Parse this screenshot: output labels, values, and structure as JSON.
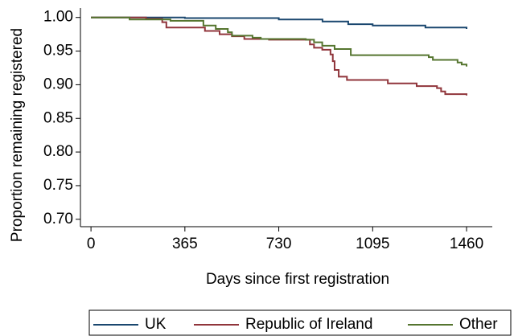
{
  "chart_data": {
    "type": "step",
    "y_label": "Proportion remaining registered",
    "x_label": "Days since first registration",
    "xlim": [
      -41,
      1560
    ],
    "ylim": [
      0.689,
      1.014
    ],
    "xticks": [
      0,
      365,
      730,
      1095,
      1460
    ],
    "yticks": [
      {
        "value": 0.7,
        "label": "0.70"
      },
      {
        "value": 0.75,
        "label": "0.75"
      },
      {
        "value": 0.8,
        "label": "0.80"
      },
      {
        "value": 0.85,
        "label": "0.85"
      },
      {
        "value": 0.9,
        "label": "0.90"
      },
      {
        "value": 0.95,
        "label": "0.95"
      },
      {
        "value": 1.0,
        "label": "1.00"
      }
    ],
    "series": [
      {
        "name": "UK",
        "color": "#1a476f",
        "x": [
          0,
          365,
          730,
          900,
          1000,
          1095,
          1300,
          1460
        ],
        "values": [
          1.0,
          0.999,
          0.997,
          0.994,
          0.99,
          0.988,
          0.985,
          0.983
        ]
      },
      {
        "name": "Republic of Ireland",
        "color": "#90353b",
        "x": [
          0,
          214,
          277,
          293,
          443,
          500,
          548,
          596,
          692,
          851,
          867,
          899,
          931,
          940,
          947,
          963,
          995,
          1154,
          1266,
          1345,
          1361,
          1377,
          1460
        ],
        "values": [
          1.0,
          0.998,
          0.993,
          0.985,
          0.98,
          0.975,
          0.972,
          0.968,
          0.967,
          0.96,
          0.955,
          0.952,
          0.945,
          0.935,
          0.922,
          0.912,
          0.907,
          0.902,
          0.898,
          0.895,
          0.89,
          0.886,
          0.884
        ]
      },
      {
        "name": "Other",
        "color": "#55752f",
        "x": [
          0,
          150,
          309,
          437,
          485,
          532,
          548,
          628,
          660,
          835,
          867,
          899,
          947,
          1010,
          1313,
          1329,
          1425,
          1441,
          1460
        ],
        "values": [
          1.0,
          0.997,
          0.995,
          0.988,
          0.983,
          0.978,
          0.973,
          0.97,
          0.968,
          0.967,
          0.963,
          0.958,
          0.953,
          0.944,
          0.941,
          0.937,
          0.933,
          0.93,
          0.927
        ]
      }
    ]
  }
}
